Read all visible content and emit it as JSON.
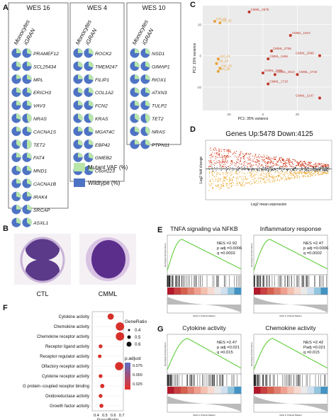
{
  "panel_letters": [
    "A",
    "B",
    "C",
    "D",
    "E",
    "F",
    "G"
  ],
  "panelA": {
    "groups": [
      {
        "title": "WES 16",
        "col_headers": [
          "Monocytes",
          "iGRAN"
        ],
        "genes": [
          "PRAMEF12",
          "SCL25434",
          "MPL",
          "ERICH3",
          "VAV3",
          "NRAS",
          "CACNA1S",
          "TET2",
          "FAT4",
          "MND1",
          "CACNA1B",
          "IRAK4",
          "SRCAP",
          "ASXL1"
        ],
        "mono_vaf": [
          0.25,
          0.3,
          0.22,
          0.28,
          0.25,
          0.3,
          0.25,
          0.35,
          0.25,
          0.3,
          0.25,
          0.3,
          0.25,
          0.3
        ],
        "igran_vaf": [
          0.3,
          0.25,
          0.28,
          0.3,
          0.28,
          0.45,
          0.3,
          0.5,
          0.3,
          0.28,
          0.3,
          0.25,
          0.3,
          0.35
        ]
      },
      {
        "title": "WES 4",
        "col_headers": [
          "Monocytes",
          "iGRAN"
        ],
        "genes": [
          "ROCK2",
          "TMEM247",
          "FILIP1",
          "COL1A2",
          "FCN2",
          "KRAS",
          "MGAT4C",
          "EBP42",
          "GMEB2",
          "C6orf223"
        ],
        "mono_vaf": [
          0.25,
          0.3,
          0.25,
          0.3,
          0.25,
          0.35,
          0.25,
          0.3,
          0.25,
          0.3
        ],
        "igran_vaf": [
          0.3,
          0.3,
          0.28,
          0.3,
          0.3,
          0.4,
          0.3,
          0.28,
          0.3,
          0.3
        ]
      },
      {
        "title": "WES 10",
        "col_headers": [
          "Monocytes",
          "iGRAN"
        ],
        "genes": [
          "NSD1",
          "GIMAP1",
          "RIOX1",
          "ATXN3",
          "TULP2",
          "TET2",
          "NRAS",
          "PTPN11"
        ],
        "mono_vaf": [
          0.25,
          0.3,
          0.25,
          0.3,
          0.28,
          0.35,
          0.3,
          0.25
        ],
        "igran_vaf": [
          0.3,
          0.3,
          0.28,
          0.3,
          0.3,
          0.45,
          0.4,
          0.3
        ]
      }
    ],
    "legend": [
      {
        "label": "Mutant VAF (%)",
        "color": "#b8e6a8"
      },
      {
        "label": "Wildtype (%)",
        "color": "#4f73c4"
      }
    ]
  },
  "panelB": {
    "labels": [
      "CTL",
      "CMML"
    ]
  },
  "panelC": {
    "xlabel": "PC1: 35% variance",
    "ylabel": "PC2: 15% variance",
    "ctl_color": "#e8a23a",
    "cmml_color": "#c0392b",
    "chart_data": {
      "type": "scatter",
      "series": [
        {
          "points": [
            {
              "x": -28,
              "y": 22,
              "label": "Ctrl_21"
            },
            {
              "x": -25,
              "y": 21,
              "label": "Ctrl_22"
            },
            {
              "x": -26,
              "y": -2,
              "label": "Ctrl_23"
            },
            {
              "x": -27,
              "y": -5,
              "label": "Ctrl_24"
            },
            {
              "x": -25,
              "y": -8,
              "label": "Ctrl_25"
            },
            {
              "x": -26,
              "y": -10,
              "label": "Ctrl_26"
            }
          ]
        },
        {
          "points": [
            {
              "x": -8,
              "y": 28,
              "label": "CMML_2678"
            },
            {
              "x": 16,
              "y": 13,
              "label": "CMML_1910"
            },
            {
              "x": 5,
              "y": 3,
              "label": "CMML_2758"
            },
            {
              "x": 33,
              "y": 0,
              "label": "CMML_2068"
            },
            {
              "x": 3,
              "y": -2,
              "label": "CMML_3466"
            },
            {
              "x": 0,
              "y": -11,
              "label": "CMML_1966"
            },
            {
              "x": 7,
              "y": -12,
              "label": "CMML_2913"
            },
            {
              "x": 20,
              "y": -12,
              "label": "CMML_2740"
            },
            {
              "x": 3,
              "y": -18,
              "label": "CMML_1710"
            },
            {
              "x": 33,
              "y": -27,
              "label": "CMML_2147"
            }
          ]
        }
      ]
    },
    "ticks_x": [
      "-20",
      "0",
      "20"
    ],
    "ticks_y": [
      "20",
      "0",
      "-20"
    ]
  },
  "panelD": {
    "title": "Genes Up:5478 Down:4125",
    "xlabel": "Log2 mean expression",
    "ylabel": "Log2 fold change",
    "up_color": "#cc2200",
    "down_color": "#e8a020"
  },
  "panelE": {
    "plots": [
      {
        "title": "TNFA signaling via NFKB",
        "stats": [
          "NES =2.92",
          "p adj =0.0006",
          "q =0.0002"
        ]
      },
      {
        "title": "Inflammatory response",
        "stats": [
          "NES =2.47",
          "p adj =0.0006",
          "q =0.0002"
        ]
      }
    ]
  },
  "panelF": {
    "xlabel": "GeneRatio",
    "size_legend_title": "GeneRatio",
    "size_levels": [
      "0.4",
      "0.5",
      "0.6"
    ],
    "color_legend_title": "p.adjust",
    "color_ticks": [
      "0.075",
      "0.050",
      "0.025"
    ],
    "chart_data": {
      "type": "scatter",
      "xlim": [
        0.35,
        0.72
      ],
      "categories": [
        "Cytokine activity",
        "Chemokine activity",
        "Chemokine receptor activity",
        "Receptor ligand activity",
        "Receptor regulator activity",
        "Olfactory receptor activity",
        "Cytokine receptor activity",
        "G protein−coupled receptor binding",
        "Oxidoreductase activity",
        "Growth factor activity"
      ],
      "x": [
        0.57,
        0.68,
        0.68,
        0.45,
        0.44,
        0.67,
        0.45,
        0.47,
        0.45,
        0.46
      ],
      "p_adjust": [
        0.025,
        0.02,
        0.03,
        0.035,
        0.03,
        0.03,
        0.035,
        0.03,
        0.04,
        0.025
      ],
      "x_ticks": [
        "0.4",
        "0.5",
        "0.6",
        "0.7"
      ]
    }
  },
  "panelG": {
    "plots": [
      {
        "title": "Cytokine activity",
        "stats": [
          "NES =2.47",
          "p adj =0.021",
          "q =0.015"
        ]
      },
      {
        "title": "Chemokine activity",
        "stats": [
          "NES =2.42",
          "Padj =0.021",
          "q =0.015"
        ]
      }
    ]
  }
}
